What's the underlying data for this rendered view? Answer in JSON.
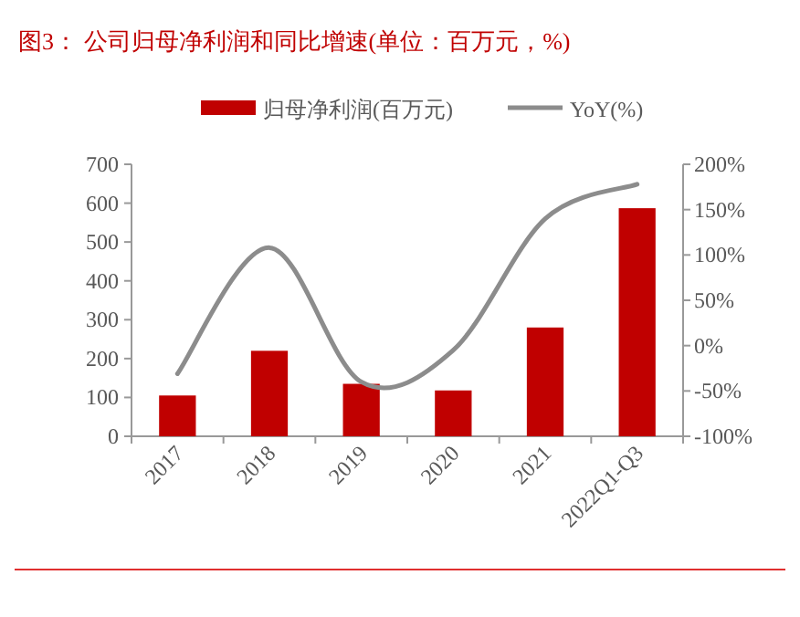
{
  "chart_data": {
    "type": "bar",
    "title": "图3：  公司归母净利润和同比增速(单位：百万元，%)",
    "categories": [
      "2017",
      "2018",
      "2019",
      "2020",
      "2021",
      "2022Q1-Q3"
    ],
    "series": [
      {
        "name": "归母净利润(百万元)",
        "color": "#c00000",
        "values": [
          105,
          220,
          135,
          118,
          280,
          587
        ]
      },
      {
        "name": "YoY(%)",
        "type": "line",
        "axis": "y2",
        "color": "#8c8c8c",
        "values": [
          -31,
          108,
          -40,
          -5,
          140,
          178
        ]
      }
    ],
    "ylim": [
      0,
      700
    ],
    "yticks": [
      0,
      100,
      200,
      300,
      400,
      500,
      600,
      700
    ],
    "y2lim": [
      -100,
      200
    ],
    "y2ticks": [
      {
        "value": -100,
        "label": "-100%"
      },
      {
        "value": -50,
        "label": "-50%"
      },
      {
        "value": 0,
        "label": "0%"
      },
      {
        "value": 50,
        "label": "50%"
      },
      {
        "value": 100,
        "label": "100%"
      },
      {
        "value": 150,
        "label": "150%"
      },
      {
        "value": 200,
        "label": "200%"
      }
    ],
    "legend": "top",
    "grid": false
  }
}
